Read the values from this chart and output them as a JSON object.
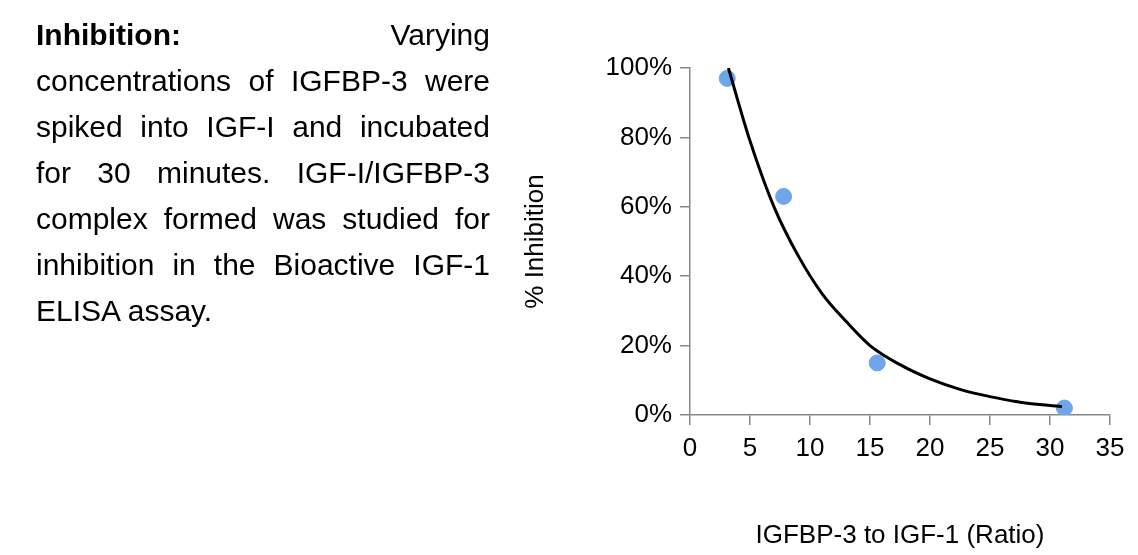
{
  "chart_data": {
    "type": "scatter",
    "title": "Inhibition:",
    "annotations": [
      "Varying concentrations of IGFBP-3 were spiked into IGF-I and incubated for 30 minutes. IGF-I/IGFBP-3 complex formed was studied for inhibition in the Bioactive IGF-1 ELISA assay."
    ],
    "xlabel": "IGFBP-3 to IGF-1 (Ratio)",
    "ylabel": "% Inhibition",
    "xlim": [
      0,
      35
    ],
    "xticks": [
      0,
      5,
      10,
      15,
      20,
      25,
      30,
      35
    ],
    "ylim": [
      0,
      1
    ],
    "yticks": [
      {
        "value": 0,
        "label": "0%"
      },
      {
        "value": 0.2,
        "label": "20%"
      },
      {
        "value": 0.4,
        "label": "40%"
      },
      {
        "value": 0.6,
        "label": "60%"
      },
      {
        "value": 0.8,
        "label": "80%"
      },
      {
        "value": 1,
        "label": "100%"
      }
    ],
    "grid": false,
    "legend": false,
    "marker": "circle",
    "series": [
      {
        "type": "scatter",
        "color": "#6fa6ea",
        "x": [
          3.1,
          7.8,
          15.6,
          31.2
        ],
        "values": [
          0.97,
          0.63,
          0.15,
          0.02
        ]
      },
      {
        "type": "line",
        "color": "#000000",
        "line_style": "solid",
        "marker": "none",
        "x": [
          3.2,
          5,
          7,
          9,
          11,
          13,
          15,
          17.5,
          20,
          22.5,
          25,
          27.5,
          31
        ],
        "values": [
          1,
          0.79,
          0.6,
          0.46,
          0.35,
          0.27,
          0.2,
          0.145,
          0.104,
          0.074,
          0.053,
          0.037,
          0.024
        ]
      }
    ]
  }
}
